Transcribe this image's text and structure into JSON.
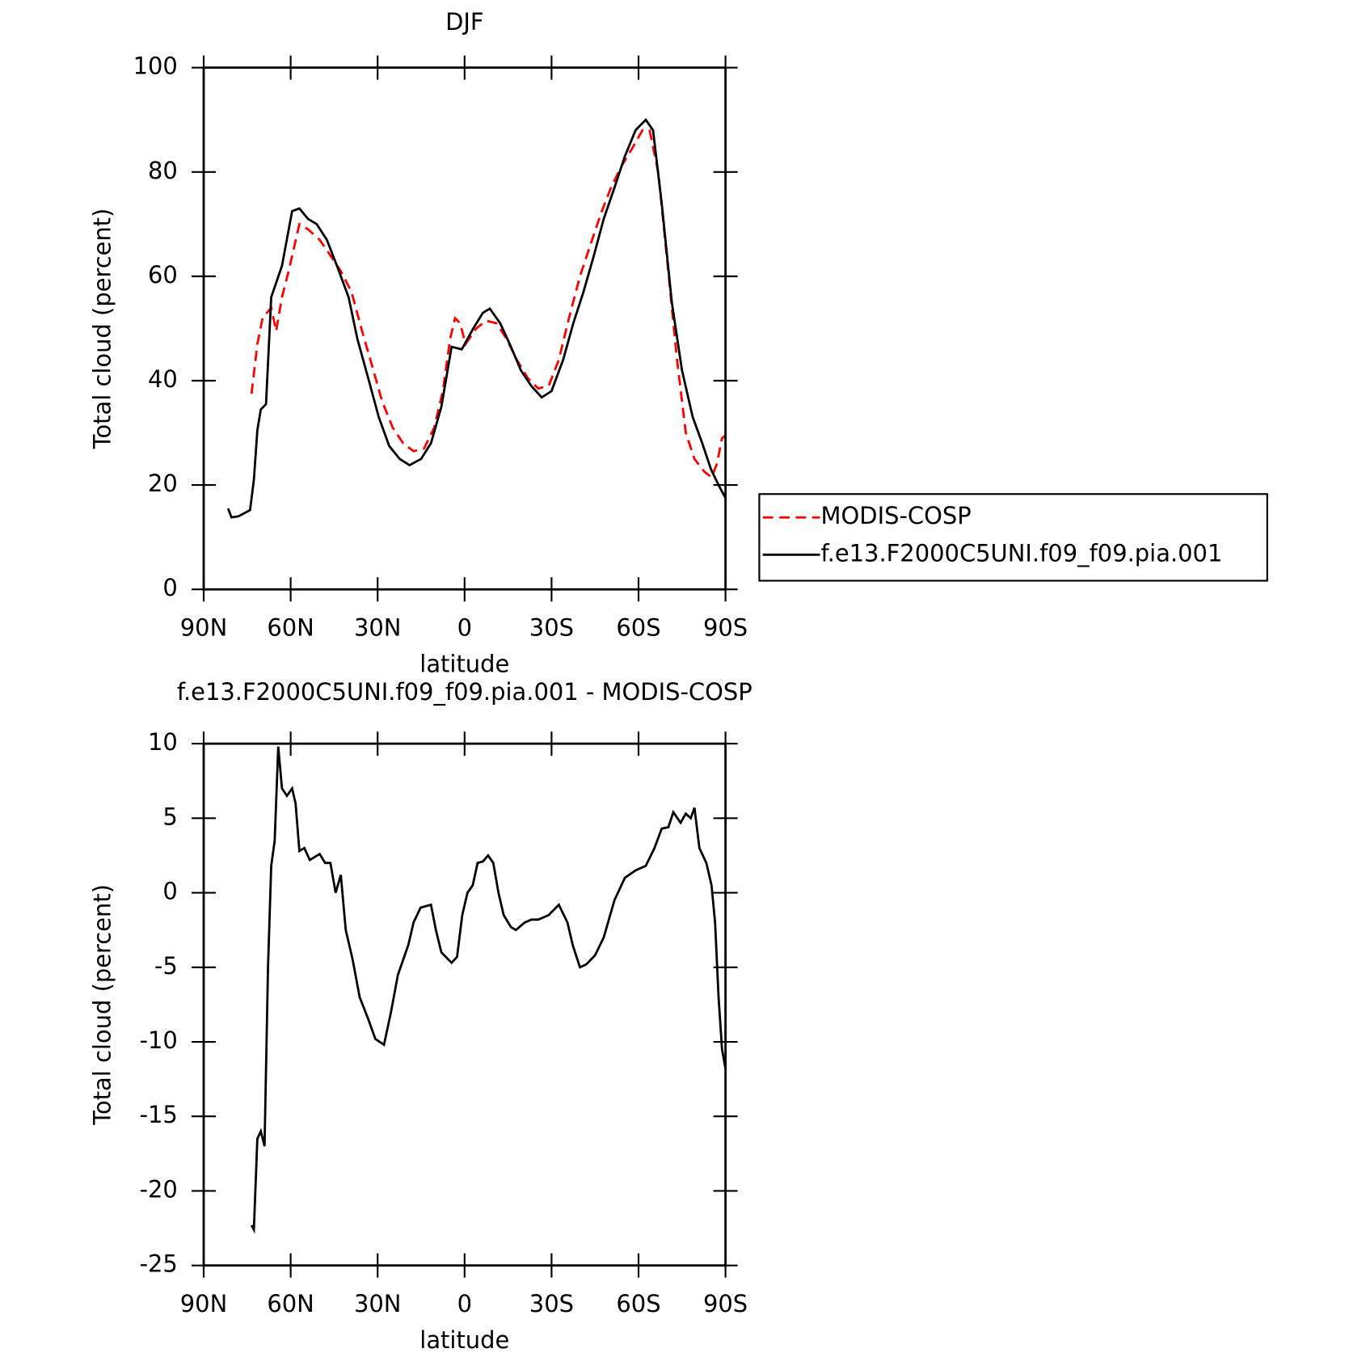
{
  "chart_data": [
    {
      "type": "line",
      "title": "DJF",
      "x_label": "latitude",
      "y_label": "Total cloud (percent)",
      "xlim": [
        90,
        -90
      ],
      "xticks": [
        {
          "value": 90,
          "label": "90N"
        },
        {
          "value": 60,
          "label": "60N"
        },
        {
          "value": 30,
          "label": "30N"
        },
        0,
        {
          "value": -30,
          "label": "30S"
        },
        {
          "value": -60,
          "label": "60S"
        },
        {
          "value": -90,
          "label": "90S"
        }
      ],
      "ylim": [
        0,
        100
      ],
      "yticks": [
        0,
        20,
        40,
        60,
        80,
        100
      ],
      "legend": "right",
      "series": [
        {
          "name": "MODIS-COSP",
          "color": "#ff0000",
          "line_style": "dashed",
          "x": [
            73.5,
            71.5,
            69.7,
            66.7,
            65,
            63,
            60.7,
            57,
            54,
            50,
            46.3,
            42.7,
            39,
            35.6,
            32,
            28.4,
            24.8,
            21.2,
            17.6,
            14,
            10.5,
            7.5,
            5,
            3.3,
            1.5,
            -0.3,
            -4,
            -7.4,
            -11,
            -14.5,
            -18,
            -21.8,
            -25.4,
            -29,
            -32.5,
            -36,
            -39.8,
            -43.4,
            -47,
            -50.5,
            -54,
            -57.8,
            -61.4,
            -63.8,
            -66.8,
            -69.7,
            -73.3,
            -76.3,
            -79.3,
            -82.8,
            -85.2,
            -87,
            -88.8,
            -90
          ],
          "values": [
            37.5,
            47,
            52,
            54,
            49.5,
            56,
            61,
            70,
            69,
            67,
            64,
            61,
            57,
            50,
            43,
            36,
            31,
            28,
            26.5,
            27,
            31,
            38,
            48,
            52,
            51,
            47,
            50,
            51.5,
            51,
            48,
            44,
            40.5,
            38.5,
            39,
            44,
            52,
            60,
            66,
            72,
            77,
            81,
            84.5,
            88,
            88,
            80,
            64,
            44,
            30,
            25,
            22.5,
            21.5,
            24,
            29,
            29.5
          ]
        },
        {
          "name": "f.e13.F2000C5UNI.f09_f09.pia.001",
          "color": "#000000",
          "line_style": "solid",
          "x": [
            81.6,
            80.4,
            78,
            74,
            72.7,
            71.5,
            70.3,
            68.5,
            66.7,
            63,
            59.5,
            57,
            54,
            51,
            47.5,
            44,
            40,
            37,
            33,
            29.6,
            26,
            22.4,
            19,
            15,
            11.6,
            8,
            4.5,
            1,
            -3,
            -6.3,
            -8.7,
            -12.3,
            -16,
            -19.4,
            -23,
            -26.6,
            -30,
            -34,
            -37.5,
            -41,
            -44.6,
            -48,
            -51.7,
            -55.3,
            -59,
            -62.5,
            -65,
            -68,
            -71.5,
            -75,
            -78.7,
            -82,
            -85,
            -87.6,
            -90
          ],
          "values": [
            15.5,
            13.8,
            14,
            15.2,
            21,
            30.5,
            34.5,
            35.5,
            56,
            62,
            72.5,
            73,
            71,
            70,
            67,
            62,
            56,
            48,
            40,
            33,
            27.5,
            25,
            23.8,
            25,
            28,
            35,
            46.5,
            46,
            50,
            53,
            53.8,
            51,
            46.5,
            42,
            39,
            36.8,
            38,
            44,
            51,
            57,
            64,
            71,
            77,
            83,
            88,
            90,
            88,
            74,
            55,
            42,
            33,
            28,
            23,
            20,
            17.5
          ]
        }
      ]
    },
    {
      "type": "line",
      "title": "f.e13.F2000C5UNI.f09_f09.pia.001 - MODIS-COSP",
      "x_label": "latitude",
      "y_label": "Total cloud (percent)",
      "xlim": [
        90,
        -90
      ],
      "xticks": [
        {
          "value": 90,
          "label": "90N"
        },
        {
          "value": 60,
          "label": "60N"
        },
        {
          "value": 30,
          "label": "30N"
        },
        0,
        {
          "value": -30,
          "label": "30S"
        },
        {
          "value": -60,
          "label": "60S"
        },
        {
          "value": -90,
          "label": "90S"
        }
      ],
      "ylim": [
        -25,
        10
      ],
      "yticks": [
        -25,
        -20,
        -15,
        -10,
        -5,
        0,
        5,
        10
      ],
      "series": [
        {
          "color": "#000000",
          "line_style": "solid",
          "x": [
            73.5,
            72.7,
            71.5,
            70.3,
            69,
            67.8,
            66.7,
            65.5,
            64.3,
            63,
            61.3,
            59.5,
            58.3,
            57,
            55.3,
            53.4,
            51.7,
            50,
            48.1,
            46.3,
            44.5,
            42.7,
            41,
            38.6,
            36.2,
            33.2,
            30.8,
            27.8,
            25.4,
            23,
            19.4,
            17.6,
            15.2,
            11.6,
            9.9,
            8,
            4.5,
            2.6,
            0.8,
            -1,
            -2.8,
            -4.5,
            -6.3,
            -8.1,
            -9.9,
            -11.7,
            -13.5,
            -16,
            -17.7,
            -20.7,
            -23,
            -25.4,
            -29,
            -32.5,
            -35.5,
            -37.3,
            -39.8,
            -42,
            -45,
            -48,
            -51.7,
            -55.3,
            -59,
            -62.5,
            -65.5,
            -68,
            -70.3,
            -72,
            -74.5,
            -76.3,
            -78,
            -79.3,
            -81,
            -83.4,
            -85.2,
            -86.4,
            -87.6,
            -88.8,
            -90
          ],
          "values": [
            -22.3,
            -22.6,
            -16.5,
            -16,
            -17,
            -5,
            1.8,
            3.5,
            9.8,
            7,
            6.5,
            7,
            6,
            2.8,
            3,
            2.2,
            2.4,
            2.6,
            2,
            2,
            0,
            1.2,
            -2.5,
            -4.5,
            -7,
            -8.5,
            -9.8,
            -10.2,
            -8,
            -5.5,
            -3.5,
            -2,
            -1,
            -0.8,
            -2.5,
            -4,
            -4.7,
            -4.3,
            -1.5,
            0,
            0.5,
            2,
            2.1,
            2.5,
            2,
            0,
            -1.5,
            -2.3,
            -2.5,
            -2,
            -1.8,
            -1.8,
            -1.5,
            -0.8,
            -2,
            -3.5,
            -5,
            -4.8,
            -4.2,
            -3,
            -0.5,
            1,
            1.5,
            1.8,
            3,
            4.3,
            4.4,
            5.4,
            4.7,
            5.3,
            5,
            5.7,
            3,
            2,
            0.5,
            -2,
            -7,
            -10.5,
            -11.8
          ]
        }
      ]
    }
  ]
}
